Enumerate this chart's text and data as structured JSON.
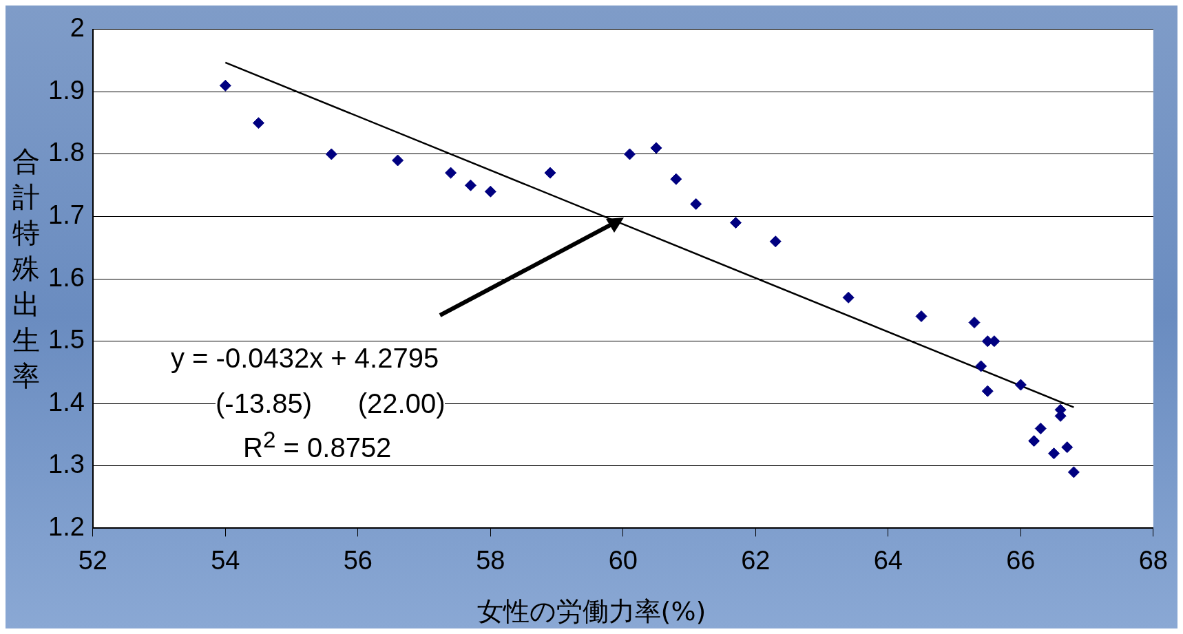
{
  "chart_data": {
    "type": "scatter",
    "xlabel": "女性の労働力率(%)",
    "ylabel": "合計特殊出生率",
    "xlim": [
      52,
      68
    ],
    "xticks": [
      52,
      54,
      56,
      58,
      60,
      62,
      64,
      66,
      68
    ],
    "ylim": [
      1.2,
      2
    ],
    "yticks": [
      1.2,
      1.3,
      1.4,
      1.5,
      1.6,
      1.7,
      1.8,
      1.9,
      2
    ],
    "grid": "y",
    "series": [
      {
        "type": "scatter",
        "marker": "diamond",
        "color": "#000080",
        "x": [
          54.0,
          54.5,
          55.6,
          56.6,
          57.4,
          57.7,
          58.0,
          58.9,
          60.1,
          60.5,
          60.8,
          61.1,
          61.7,
          62.3,
          63.4,
          64.5,
          65.3,
          65.5,
          65.6,
          65.4,
          65.5,
          66.0,
          66.3,
          66.2,
          66.6,
          66.6,
          66.5,
          66.7,
          66.8
        ],
        "values": [
          1.91,
          1.85,
          1.8,
          1.79,
          1.77,
          1.75,
          1.74,
          1.77,
          1.8,
          1.81,
          1.76,
          1.72,
          1.69,
          1.66,
          1.57,
          1.54,
          1.53,
          1.5,
          1.5,
          1.46,
          1.42,
          1.43,
          1.36,
          1.34,
          1.39,
          1.38,
          1.32,
          1.33,
          1.29
        ]
      },
      {
        "type": "line",
        "marker": "none",
        "color": "#000000",
        "line_style": "solid",
        "x": [
          54,
          66.8
        ],
        "values": [
          1.947,
          1.394
        ]
      }
    ],
    "annotations": [
      "y = -0.0432x + 4.2795",
      "(-13.85)      (22.00)",
      "R$^{2}$ = 0.8752"
    ]
  }
}
